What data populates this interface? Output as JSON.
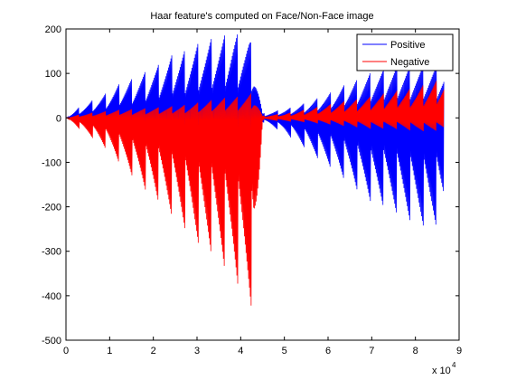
{
  "chart_data": {
    "type": "line",
    "title": "Haar feature's computed on Face/Non-Face image",
    "xlabel": "",
    "ylabel": "",
    "x_exponent_label": "x 10",
    "x_exponent_power": "4",
    "xlim": [
      0,
      9
    ],
    "ylim": [
      -500,
      200
    ],
    "xticks": [
      0,
      1,
      2,
      3,
      4,
      5,
      6,
      7,
      8,
      9
    ],
    "xtick_labels": [
      "0",
      "1",
      "2",
      "3",
      "4",
      "5",
      "6",
      "7",
      "8",
      "9"
    ],
    "yticks": [
      -500,
      -400,
      -300,
      -200,
      -100,
      0,
      100,
      200
    ],
    "ytick_labels": [
      "-500",
      "-400",
      "-300",
      "-200",
      "-100",
      "0",
      "100",
      "200"
    ],
    "legend_position": "top-right",
    "grid": false,
    "series": [
      {
        "name": "Positive",
        "color": "#0000ff",
        "envelope": {
          "x": [
            0,
            0.3,
            0.6,
            0.9,
            1.2,
            1.5,
            1.8,
            2.1,
            2.4,
            2.7,
            3.0,
            3.3,
            3.6,
            3.8,
            4.0,
            4.2,
            4.3,
            4.5,
            5.0,
            5.5,
            6.0,
            6.5,
            7.0,
            7.5,
            8.0,
            8.5,
            8.65
          ],
          "max": [
            0,
            25,
            40,
            55,
            75,
            90,
            105,
            120,
            140,
            155,
            170,
            180,
            185,
            195,
            195,
            185,
            150,
            10,
            20,
            35,
            55,
            80,
            105,
            115,
            120,
            118,
            115
          ],
          "min": [
            0,
            -10,
            -18,
            -25,
            -35,
            -45,
            -55,
            -65,
            -80,
            -95,
            -110,
            -125,
            -135,
            -145,
            -160,
            -175,
            -20,
            -10,
            -35,
            -70,
            -110,
            -150,
            -190,
            -215,
            -240,
            -250,
            -240
          ]
        }
      },
      {
        "name": "Negative",
        "color": "#ff0000",
        "envelope": {
          "x": [
            0,
            0.3,
            0.6,
            0.9,
            1.2,
            1.5,
            1.8,
            2.1,
            2.4,
            2.7,
            3.0,
            3.3,
            3.6,
            3.8,
            4.0,
            4.2,
            4.3,
            4.5,
            5.0,
            5.5,
            6.0,
            6.5,
            7.0,
            7.5,
            8.0,
            8.5,
            8.65
          ],
          "max": [
            0,
            8,
            12,
            15,
            18,
            20,
            22,
            24,
            26,
            30,
            35,
            40,
            45,
            48,
            50,
            55,
            60,
            5,
            10,
            20,
            30,
            40,
            50,
            60,
            70,
            85,
            90
          ],
          "min": [
            0,
            -25,
            -45,
            -70,
            -100,
            -130,
            -160,
            -190,
            -220,
            -250,
            -280,
            -310,
            -340,
            -360,
            -390,
            -420,
            -435,
            -5,
            -8,
            -10,
            -15,
            -20,
            -25,
            -25,
            -30,
            -30,
            -30
          ]
        }
      }
    ]
  }
}
